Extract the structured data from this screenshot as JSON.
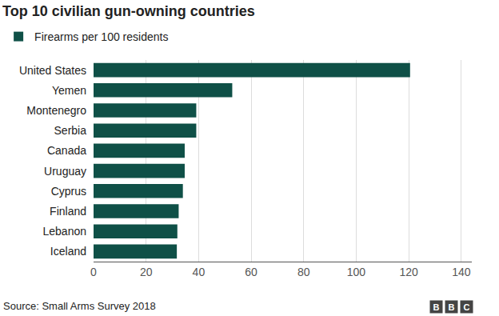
{
  "chart_data": {
    "type": "bar",
    "orientation": "horizontal",
    "title": "Top 10 civilian gun-owning countries",
    "categories": [
      "United States",
      "Yemen",
      "Montenegro",
      "Serbia",
      "Canada",
      "Uruguay",
      "Cyprus",
      "Finland",
      "Lebanon",
      "Iceland"
    ],
    "series": [
      {
        "name": "Firearms per 100 residents",
        "color": "#0f5047",
        "values": [
          120.5,
          52.8,
          39.1,
          39.1,
          34.7,
          34.7,
          34.0,
          32.4,
          31.9,
          31.7
        ]
      }
    ],
    "xlim": [
      0,
      144
    ],
    "xticks": [
      0,
      20,
      40,
      60,
      80,
      100,
      120,
      140
    ],
    "grid": true,
    "legend": "top-left",
    "source": "Source: Small Arms Survey 2018",
    "logo": "BBC"
  }
}
